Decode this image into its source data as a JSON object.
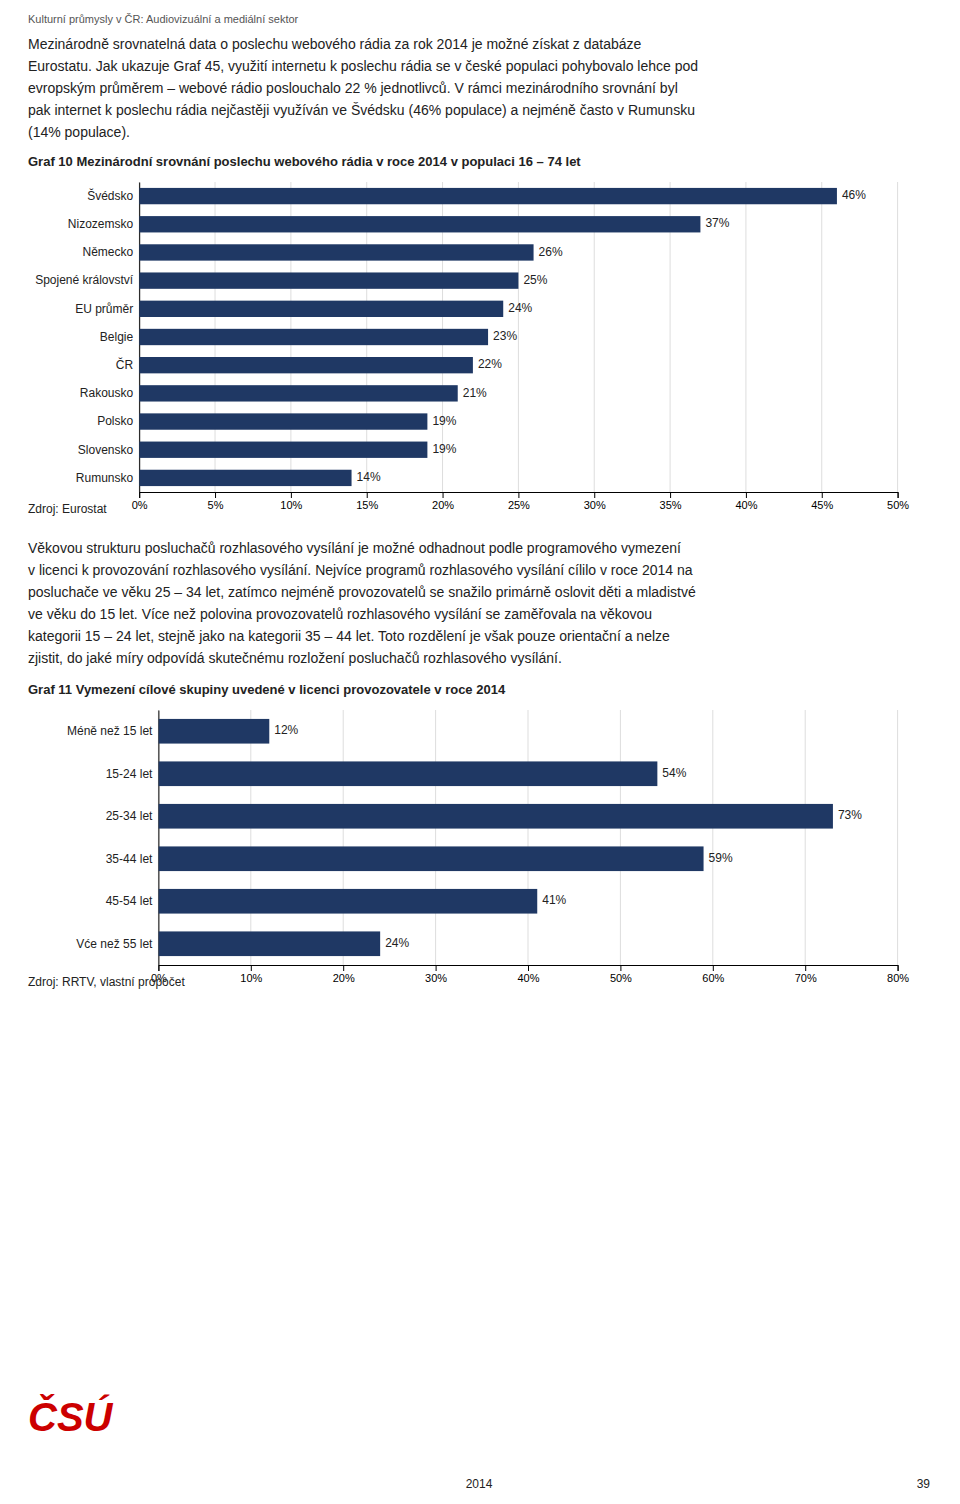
{
  "header": "Kulturní průmysly v ČR: Audiovizuální a mediální sektor",
  "paragraphs": [
    [
      "Mezinárodně srovnatelná data o poslechu webového rádia za rok 2014 je možné získat z databáze",
      "Eurostatu. Jak ukazuje Graf 45, využití internetu k poslechu rádia se v české populaci pohybovalo lehce pod",
      "evropským průměrem – webové rádio poslouchalo 22 % jednotlivců. V rámci mezinárodního srovnání byl",
      "pak internet k poslechu rádia nejčastěji využíván ve Švédsku (46% populace) a nejméně často v Rumunsku",
      "(14% populace)."
    ],
    [
      "Věkovou strukturu posluchačů rozhlasového vysílání je možné odhadnout podle programového vymezení",
      "v licenci k provozování rozhlasového vysílání. Nejvíce programů rozhlasového vysílání cílilo v roce 2014 na",
      "posluchače ve věku 25 – 34 let, zatímco nejméně provozovatelů se snažilo primárně oslovit děti a mladistvé",
      "ve věku do 15 let. Více než polovina provozovatelů rozhlasového vysílání se zaměřovala na věkovou",
      "kategorii 15 – 24 let, stejně jako na kategorii 35 – 44 let. Toto rozdělení je však pouze orientační a nelze",
      "zjistit, do jaké míry odpovídá skutečnému rozložení posluchačů rozhlasového vysílání."
    ]
  ],
  "chart_data": [
    {
      "type": "bar",
      "orientation": "horizontal",
      "title": "Graf 10 Mezinárodní srovnání poslechu webového rádia v roce 2014 v populaci 16 – 74 let",
      "categories": [
        "Švédsko",
        "Nizozemsko",
        "Německo",
        "Spojené království",
        "EU průměr",
        "Belgie",
        "ČR",
        "Rakousko",
        "Polsko",
        "Slovensko",
        "Rumunsko"
      ],
      "values": [
        46,
        37,
        26,
        25,
        24,
        23,
        22,
        21,
        19,
        19,
        14
      ],
      "value_labels": [
        "46%",
        "37%",
        "26%",
        "25%",
        "24%",
        "23%",
        "22%",
        "21%",
        "19%",
        "19%",
        "14%"
      ],
      "data_labels": true,
      "color": "#1F3864",
      "xlim": [
        0,
        50
      ],
      "xticks": [
        {
          "value": 0,
          "label": "0%"
        },
        {
          "value": 5,
          "label": "5%"
        },
        {
          "value": 10,
          "label": "10%"
        },
        {
          "value": 15,
          "label": "15%"
        },
        {
          "value": 20,
          "label": "20%"
        },
        {
          "value": 25,
          "label": "25%"
        },
        {
          "value": 30,
          "label": "30%"
        },
        {
          "value": 35,
          "label": "35%"
        },
        {
          "value": 40,
          "label": "40%"
        },
        {
          "value": 45,
          "label": "45%"
        },
        {
          "value": 50,
          "label": "50%"
        }
      ],
      "grid": true,
      "source": "Zdroj: Eurostat"
    },
    {
      "type": "bar",
      "orientation": "horizontal",
      "title": "Graf 11 Vymezení cílové skupiny uvedené v licenci provozovatele v roce 2014",
      "categories": [
        "Méně než 15 let",
        "15-24 let",
        "25-34 let",
        "35-44 let",
        "45-54 let",
        "Vće než 55 let"
      ],
      "values": [
        12,
        54,
        73,
        59,
        41,
        24
      ],
      "value_labels": [
        "12%",
        "54%",
        "73%",
        "59%",
        "41%",
        "24%"
      ],
      "data_labels": true,
      "color": "#1F3864",
      "xlim": [
        0,
        80
      ],
      "xticks": [
        {
          "value": 0,
          "label": "0%"
        },
        {
          "value": 10,
          "label": "10%"
        },
        {
          "value": 20,
          "label": "20%"
        },
        {
          "value": 30,
          "label": "30%"
        },
        {
          "value": 40,
          "label": "40%"
        },
        {
          "value": 50,
          "label": "50%"
        },
        {
          "value": 60,
          "label": "60%"
        },
        {
          "value": 70,
          "label": "70%"
        },
        {
          "value": 80,
          "label": "80%"
        }
      ],
      "grid": true,
      "source": "Zdroj: RRTV, vlastní propočet"
    }
  ],
  "logo": {
    "text": "ČSÚ",
    "color": "#CC0000"
  },
  "footer": {
    "year": "2014",
    "page": "39"
  }
}
